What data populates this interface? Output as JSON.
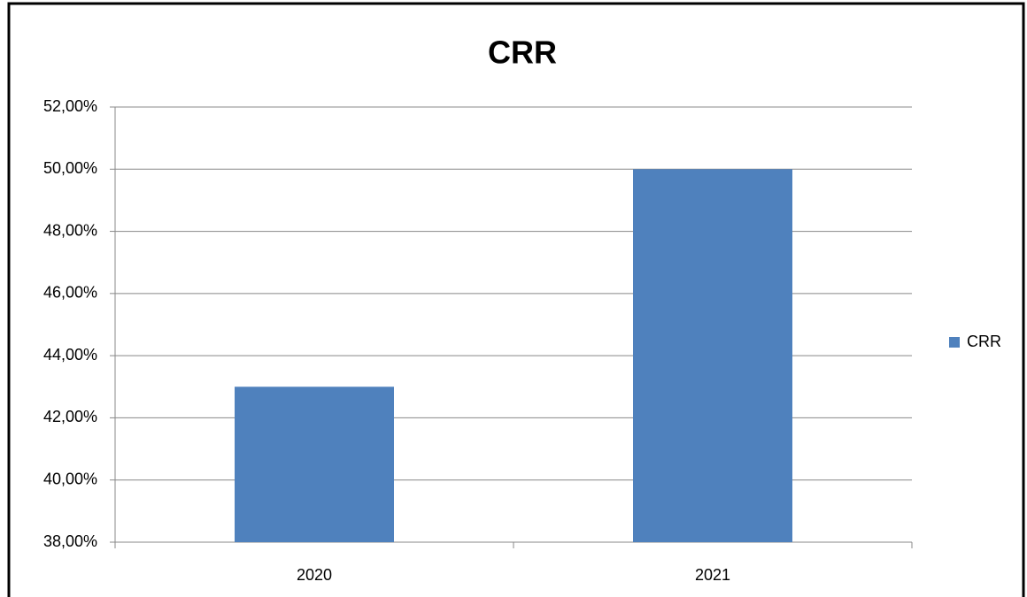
{
  "chart_data": {
    "type": "bar",
    "title": "CRR",
    "categories": [
      "2020",
      "2021"
    ],
    "series": [
      {
        "name": "CRR",
        "color": "#4f81bd",
        "values": [
          43,
          50
        ]
      }
    ],
    "ylim": [
      38,
      52
    ],
    "yticks": [
      {
        "value": 38,
        "label": "38,00%"
      },
      {
        "value": 40,
        "label": "40,00%"
      },
      {
        "value": 42,
        "label": "42,00%"
      },
      {
        "value": 44,
        "label": "44,00%"
      },
      {
        "value": 46,
        "label": "46,00%"
      },
      {
        "value": 48,
        "label": "48,00%"
      },
      {
        "value": 50,
        "label": "50,00%"
      },
      {
        "value": 52,
        "label": "52,00%"
      }
    ],
    "grid": true,
    "legend": "right"
  }
}
